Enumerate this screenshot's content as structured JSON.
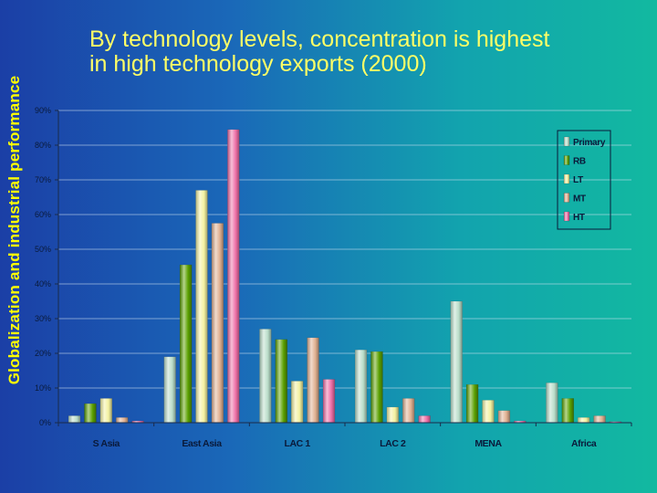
{
  "side_title": "Globalization and industrial performance",
  "headline": {
    "line1": "By technology levels, concentration is highest",
    "line2": "in high technology exports (2000)"
  },
  "colors": {
    "Primary": "#b9ddc9",
    "RB": "#5aa000",
    "LT": "#f3f1a0",
    "MT": "#e0b090",
    "HT": "#ee6fa7"
  },
  "chart_data": {
    "type": "bar",
    "title": "",
    "xlabel": "",
    "ylabel": "",
    "ylim": [
      0,
      90
    ],
    "y_ticks": [
      "0%",
      "10%",
      "20%",
      "30%",
      "40%",
      "50%",
      "60%",
      "70%",
      "80%",
      "90%"
    ],
    "y_unit": "%",
    "grid": true,
    "legend_position": "top-right",
    "categories": [
      "S Asia",
      "East Asia",
      "LAC 1",
      "LAC 2",
      "MENA",
      "Africa"
    ],
    "series": [
      {
        "name": "Primary",
        "values": [
          2,
          19,
          27,
          21,
          35,
          11.5
        ]
      },
      {
        "name": "RB",
        "values": [
          5.5,
          45.5,
          24,
          20.5,
          11,
          7
        ]
      },
      {
        "name": "LT",
        "values": [
          7,
          67,
          12,
          4.5,
          6.5,
          1.5
        ]
      },
      {
        "name": "MT",
        "values": [
          1.5,
          57.5,
          24.5,
          7,
          3.5,
          2
        ]
      },
      {
        "name": "HT",
        "values": [
          0.5,
          84.5,
          12.5,
          2,
          0.5,
          0.3
        ]
      }
    ]
  }
}
